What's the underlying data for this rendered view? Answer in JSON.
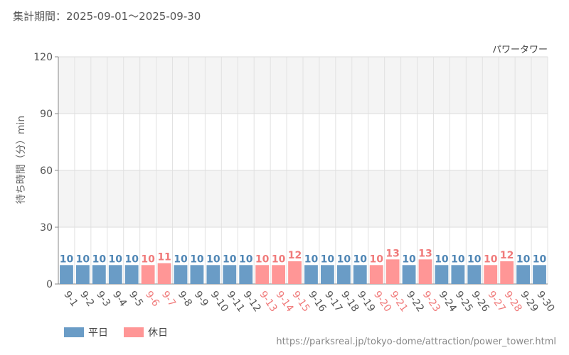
{
  "header": {
    "period": "集計期間：2025-09-01～2025-09-30"
  },
  "footer": {
    "source": "https://parksreal.jp/tokyo-dome/attraction/power_tower.html"
  },
  "colors": {
    "weekday": "#6a9cc6",
    "holiday": "#ff9696",
    "holiday_text": "#f07a7a",
    "weekday_text": "#4f86b5"
  },
  "chart_data": {
    "type": "bar",
    "title": "パワータワー",
    "ylabel": "待ち時間（分）min",
    "xlabel": "",
    "ylim": [
      0,
      120
    ],
    "yticks": [
      0,
      30,
      60,
      90,
      120
    ],
    "categories": [
      "9-1",
      "9-2",
      "9-3",
      "9-4",
      "9-5",
      "9-6",
      "9-7",
      "9-8",
      "9-9",
      "9-10",
      "9-11",
      "9-12",
      "9-13",
      "9-14",
      "9-15",
      "9-16",
      "9-17",
      "9-18",
      "9-19",
      "9-20",
      "9-21",
      "9-22",
      "9-23",
      "9-24",
      "9-25",
      "9-26",
      "9-27",
      "9-28",
      "9-29",
      "9-30"
    ],
    "values": [
      10,
      10,
      10,
      10,
      10,
      10,
      11,
      10,
      10,
      10,
      10,
      10,
      10,
      10,
      12,
      10,
      10,
      10,
      10,
      10,
      13,
      10,
      13,
      10,
      10,
      10,
      10,
      12,
      10,
      10
    ],
    "day_type": [
      "平日",
      "平日",
      "平日",
      "平日",
      "平日",
      "休日",
      "休日",
      "平日",
      "平日",
      "平日",
      "平日",
      "平日",
      "休日",
      "休日",
      "休日",
      "平日",
      "平日",
      "平日",
      "平日",
      "休日",
      "休日",
      "平日",
      "休日",
      "平日",
      "平日",
      "平日",
      "休日",
      "休日",
      "平日",
      "平日"
    ],
    "series": [
      {
        "name": "平日"
      },
      {
        "name": "休日"
      }
    ],
    "legend": "bottom-left",
    "grid": true
  }
}
